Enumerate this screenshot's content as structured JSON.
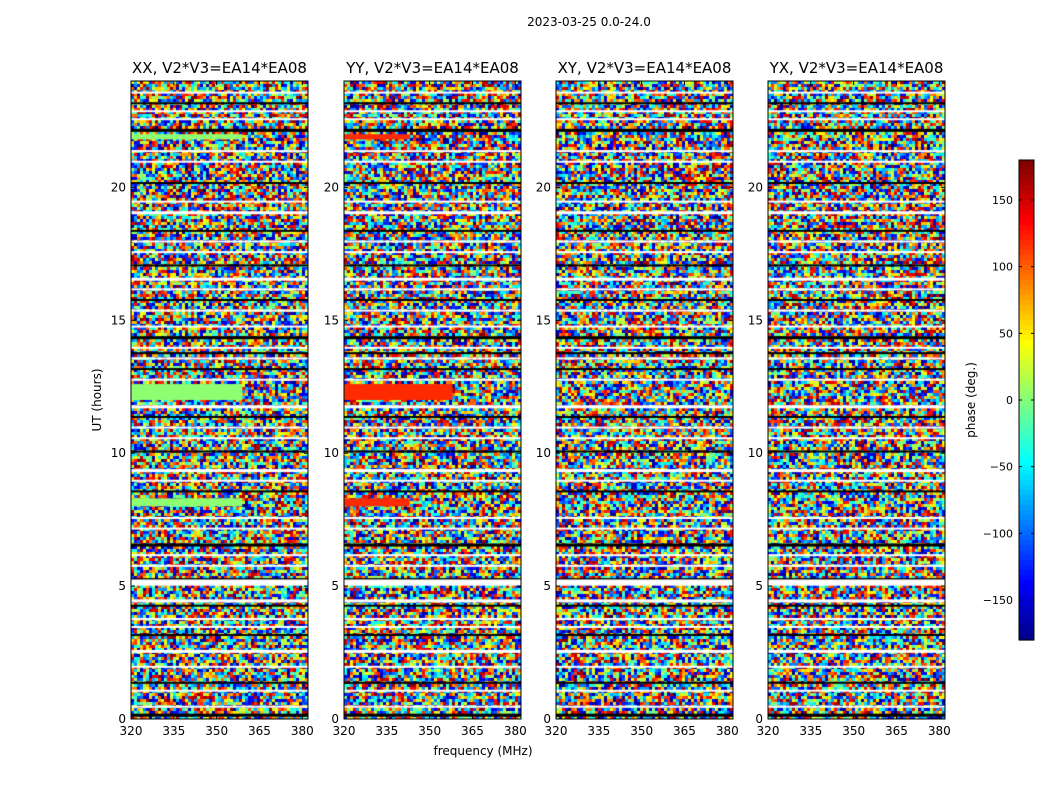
{
  "chart_data": {
    "type": "heatmap",
    "suptitle": "2023-03-25 0.0-24.0",
    "xlabel": "frequency (MHz)",
    "ylabel": "UT (hours)",
    "xlim": [
      320,
      382
    ],
    "ylim": [
      0,
      24
    ],
    "xticks": [
      {
        "value": 320,
        "label": "320"
      },
      {
        "value": 335,
        "label": "335"
      },
      {
        "value": 350,
        "label": "350"
      },
      {
        "value": 365,
        "label": "365"
      },
      {
        "value": 380,
        "label": "380"
      }
    ],
    "yticks": [
      {
        "value": 0,
        "label": "0"
      },
      {
        "value": 5,
        "label": "5"
      },
      {
        "value": 10,
        "label": "10"
      },
      {
        "value": 15,
        "label": "15"
      },
      {
        "value": 20,
        "label": "20"
      }
    ],
    "panels": [
      {
        "title": "XX, V2*V3=EA14*EA08",
        "pol": "XX",
        "band_phases": [
          {
            "t0": 8.0,
            "t1": 8.3,
            "f1": 359,
            "phase": 5
          },
          {
            "t0": 12.0,
            "t1": 12.6,
            "f1": 359,
            "phase": 5
          },
          {
            "t0": 21.8,
            "t1": 22.0,
            "f1": 359,
            "phase": 5
          }
        ]
      },
      {
        "title": "YY, V2*V3=EA14*EA08",
        "pol": "YY",
        "band_phases": [
          {
            "t0": 8.0,
            "t1": 8.3,
            "f1": 343,
            "phase": 120
          },
          {
            "t0": 12.0,
            "t1": 12.6,
            "f1": 358,
            "phase": 120
          },
          {
            "t0": 21.8,
            "t1": 22.0,
            "f1": 343,
            "phase": 120
          }
        ]
      },
      {
        "title": "XY, V2*V3=EA14*EA08",
        "pol": "XY",
        "band_phases": []
      },
      {
        "title": "YX, V2*V3=EA14*EA08",
        "pol": "YX",
        "band_phases": []
      }
    ],
    "flagged_rows_ut": [
      0.2,
      0.5,
      1.1,
      1.4,
      2.0,
      2.6,
      3.2,
      3.5,
      3.8,
      4.3,
      4.5,
      5.1,
      5.3,
      5.8,
      6.2,
      6.6,
      7.2,
      7.6,
      8.6,
      9.0,
      9.4,
      10.1,
      10.6,
      11.0,
      11.4,
      11.8,
      12.8,
      13.2,
      13.6,
      14.0,
      14.4,
      14.8,
      15.4,
      15.8,
      16.2,
      16.6,
      17.1,
      17.6,
      18.0,
      18.4,
      19.1,
      19.5,
      20.2,
      21.0,
      21.4,
      22.2,
      22.6,
      22.9,
      23.2,
      23.6
    ],
    "colorbar": {
      "label": "phase (deg.)",
      "range": [
        -180,
        180
      ],
      "colormap": "jet",
      "ticks": [
        {
          "value": -150,
          "label": "−150"
        },
        {
          "value": -100,
          "label": "−100"
        },
        {
          "value": -50,
          "label": "−50"
        },
        {
          "value": 0,
          "label": "0"
        },
        {
          "value": 50,
          "label": "50"
        },
        {
          "value": 100,
          "label": "100"
        },
        {
          "value": 150,
          "label": "150"
        }
      ]
    }
  }
}
